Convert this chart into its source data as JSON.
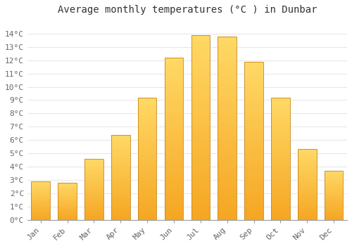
{
  "title": "Average monthly temperatures (°C ) in Dunbar",
  "months": [
    "Jan",
    "Feb",
    "Mar",
    "Apr",
    "May",
    "Jun",
    "Jul",
    "Aug",
    "Sep",
    "Oct",
    "Nov",
    "Dec"
  ],
  "temperatures": [
    2.9,
    2.8,
    4.6,
    6.4,
    9.2,
    12.2,
    13.9,
    13.8,
    11.9,
    9.2,
    5.3,
    3.7
  ],
  "bar_color_bottom": "#F5A623",
  "bar_color_top": "#FFD966",
  "bar_edge_color": "#C8861A",
  "ylim": [
    0,
    15
  ],
  "yticks": [
    0,
    1,
    2,
    3,
    4,
    5,
    6,
    7,
    8,
    9,
    10,
    11,
    12,
    13,
    14
  ],
  "background_color": "#ffffff",
  "grid_color": "#e8e8e8",
  "title_fontsize": 10,
  "tick_fontsize": 8,
  "font_family": "monospace"
}
